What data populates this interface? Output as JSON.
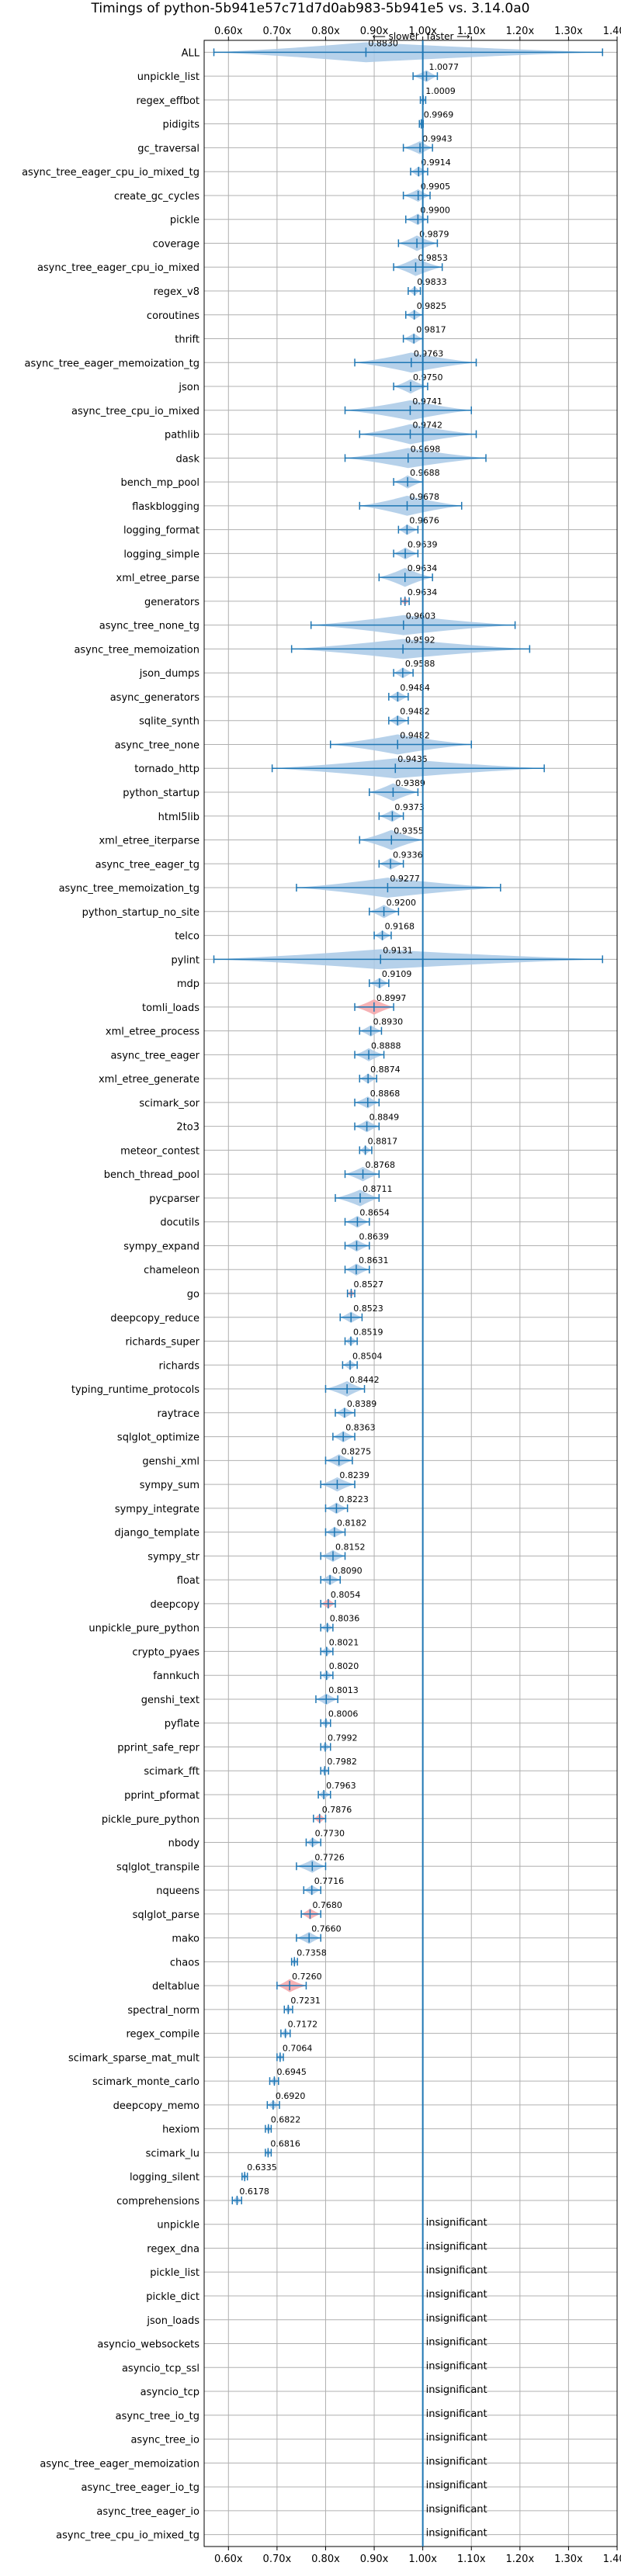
{
  "chart_data": {
    "type": "violin",
    "title": "Timings of python-5b941e57c71d7d0ab983-5b941e5 vs. 3.14.0a0",
    "annotation_left": "⟵ slower",
    "annotation_right": "faster ⟶",
    "xlim": [
      0.55,
      1.4
    ],
    "x_ticks": [
      0.6,
      0.7,
      0.8,
      0.9,
      1.0,
      1.1,
      1.2,
      1.3,
      1.4
    ],
    "x_tick_labels": [
      "0.60x",
      "0.70x",
      "0.80x",
      "0.90x",
      "1.00x",
      "1.10x",
      "1.20x",
      "1.30x",
      "1.40x"
    ],
    "reference_line": 1.0,
    "grid": true,
    "insignificant_label": "insignificant",
    "benchmarks": [
      {
        "name": "ALL",
        "value": 0.883,
        "label": "0.8830",
        "spread": [
          0.57,
          1.37
        ]
      },
      {
        "name": "unpickle_list",
        "value": 1.0077,
        "label": "1.0077",
        "spread": [
          0.98,
          1.03
        ]
      },
      {
        "name": "regex_effbot",
        "value": 1.0009,
        "label": "1.0009",
        "spread": [
          0.995,
          1.006
        ]
      },
      {
        "name": "pidigits",
        "value": 0.9969,
        "label": "0.9969",
        "spread": [
          0.993,
          1.001
        ]
      },
      {
        "name": "gc_traversal",
        "value": 0.9943,
        "label": "0.9943",
        "spread": [
          0.96,
          1.02
        ]
      },
      {
        "name": "async_tree_eager_cpu_io_mixed_tg",
        "value": 0.9914,
        "label": "0.9914",
        "spread": [
          0.975,
          1.01
        ]
      },
      {
        "name": "create_gc_cycles",
        "value": 0.9905,
        "label": "0.9905",
        "spread": [
          0.96,
          1.015
        ]
      },
      {
        "name": "pickle",
        "value": 0.99,
        "label": "0.9900",
        "spread": [
          0.965,
          1.01
        ]
      },
      {
        "name": "coverage",
        "value": 0.9879,
        "label": "0.9879",
        "spread": [
          0.95,
          1.03
        ]
      },
      {
        "name": "async_tree_eager_cpu_io_mixed",
        "value": 0.9853,
        "label": "0.9853",
        "spread": [
          0.94,
          1.04
        ]
      },
      {
        "name": "regex_v8",
        "value": 0.9833,
        "label": "0.9833",
        "spread": [
          0.97,
          0.995
        ]
      },
      {
        "name": "coroutines",
        "value": 0.9825,
        "label": "0.9825",
        "spread": [
          0.965,
          1.0
        ]
      },
      {
        "name": "thrift",
        "value": 0.9817,
        "label": "0.9817",
        "spread": [
          0.96,
          1.0
        ]
      },
      {
        "name": "async_tree_eager_memoization_tg",
        "value": 0.9763,
        "label": "0.9763",
        "spread": [
          0.86,
          1.11
        ]
      },
      {
        "name": "json",
        "value": 0.975,
        "label": "0.9750",
        "spread": [
          0.94,
          1.01
        ]
      },
      {
        "name": "async_tree_cpu_io_mixed",
        "value": 0.9741,
        "label": "0.9741",
        "spread": [
          0.84,
          1.1
        ]
      },
      {
        "name": "pathlib",
        "value": 0.9742,
        "label": "0.9742",
        "spread": [
          0.87,
          1.11
        ]
      },
      {
        "name": "dask",
        "value": 0.9698,
        "label": "0.9698",
        "spread": [
          0.84,
          1.13
        ]
      },
      {
        "name": "bench_mp_pool",
        "value": 0.9688,
        "label": "0.9688",
        "spread": [
          0.94,
          1.0
        ]
      },
      {
        "name": "flaskblogging",
        "value": 0.9678,
        "label": "0.9678",
        "spread": [
          0.87,
          1.08
        ]
      },
      {
        "name": "logging_format",
        "value": 0.9676,
        "label": "0.9676",
        "spread": [
          0.95,
          0.99
        ]
      },
      {
        "name": "logging_simple",
        "value": 0.9639,
        "label": "0.9639",
        "spread": [
          0.94,
          0.99
        ]
      },
      {
        "name": "xml_etree_parse",
        "value": 0.9634,
        "label": "0.9634",
        "spread": [
          0.91,
          1.02
        ]
      },
      {
        "name": "generators",
        "value": 0.9634,
        "label": "0.9634",
        "spread": [
          0.955,
          0.972
        ],
        "highlight": true
      },
      {
        "name": "async_tree_none_tg",
        "value": 0.9603,
        "label": "0.9603",
        "spread": [
          0.77,
          1.19
        ]
      },
      {
        "name": "async_tree_memoization",
        "value": 0.9592,
        "label": "0.9592",
        "spread": [
          0.73,
          1.22
        ]
      },
      {
        "name": "json_dumps",
        "value": 0.9588,
        "label": "0.9588",
        "spread": [
          0.94,
          0.98
        ]
      },
      {
        "name": "async_generators",
        "value": 0.9484,
        "label": "0.9484",
        "spread": [
          0.93,
          0.97
        ]
      },
      {
        "name": "sqlite_synth",
        "value": 0.9482,
        "label": "0.9482",
        "spread": [
          0.93,
          0.97
        ]
      },
      {
        "name": "async_tree_none",
        "value": 0.9482,
        "label": "0.9482",
        "spread": [
          0.81,
          1.1
        ]
      },
      {
        "name": "tornado_http",
        "value": 0.9435,
        "label": "0.9435",
        "spread": [
          0.69,
          1.25
        ]
      },
      {
        "name": "python_startup",
        "value": 0.9389,
        "label": "0.9389",
        "spread": [
          0.89,
          0.99
        ]
      },
      {
        "name": "html5lib",
        "value": 0.9373,
        "label": "0.9373",
        "spread": [
          0.91,
          0.96
        ]
      },
      {
        "name": "xml_etree_iterparse",
        "value": 0.9355,
        "label": "0.9355",
        "spread": [
          0.87,
          1.0
        ]
      },
      {
        "name": "async_tree_eager_tg",
        "value": 0.9336,
        "label": "0.9336",
        "spread": [
          0.91,
          0.96
        ]
      },
      {
        "name": "async_tree_memoization_tg",
        "value": 0.9277,
        "label": "0.9277",
        "spread": [
          0.74,
          1.16
        ]
      },
      {
        "name": "python_startup_no_site",
        "value": 0.92,
        "label": "0.9200",
        "spread": [
          0.89,
          0.95
        ]
      },
      {
        "name": "telco",
        "value": 0.9168,
        "label": "0.9168",
        "spread": [
          0.9,
          0.935
        ]
      },
      {
        "name": "pylint",
        "value": 0.9131,
        "label": "0.9131",
        "spread": [
          0.57,
          1.37
        ]
      },
      {
        "name": "mdp",
        "value": 0.9109,
        "label": "0.9109",
        "spread": [
          0.89,
          0.93
        ]
      },
      {
        "name": "tomli_loads",
        "value": 0.8997,
        "label": "0.8997",
        "spread": [
          0.86,
          0.94
        ],
        "highlight": true
      },
      {
        "name": "xml_etree_process",
        "value": 0.893,
        "label": "0.8930",
        "spread": [
          0.87,
          0.915
        ]
      },
      {
        "name": "async_tree_eager",
        "value": 0.8888,
        "label": "0.8888",
        "spread": [
          0.86,
          0.92
        ]
      },
      {
        "name": "xml_etree_generate",
        "value": 0.8874,
        "label": "0.8874",
        "spread": [
          0.87,
          0.905
        ]
      },
      {
        "name": "scimark_sor",
        "value": 0.8868,
        "label": "0.8868",
        "spread": [
          0.86,
          0.91
        ]
      },
      {
        "name": "2to3",
        "value": 0.8849,
        "label": "0.8849",
        "spread": [
          0.86,
          0.91
        ]
      },
      {
        "name": "meteor_contest",
        "value": 0.8817,
        "label": "0.8817",
        "spread": [
          0.87,
          0.895
        ]
      },
      {
        "name": "bench_thread_pool",
        "value": 0.8768,
        "label": "0.8768",
        "spread": [
          0.84,
          0.91
        ]
      },
      {
        "name": "pycparser",
        "value": 0.8711,
        "label": "0.8711",
        "spread": [
          0.82,
          0.91
        ]
      },
      {
        "name": "docutils",
        "value": 0.8654,
        "label": "0.8654",
        "spread": [
          0.84,
          0.89
        ]
      },
      {
        "name": "sympy_expand",
        "value": 0.8639,
        "label": "0.8639",
        "spread": [
          0.84,
          0.89
        ]
      },
      {
        "name": "chameleon",
        "value": 0.8631,
        "label": "0.8631",
        "spread": [
          0.84,
          0.89
        ]
      },
      {
        "name": "go",
        "value": 0.8527,
        "label": "0.8527",
        "spread": [
          0.845,
          0.86
        ],
        "highlight": true
      },
      {
        "name": "deepcopy_reduce",
        "value": 0.8523,
        "label": "0.8523",
        "spread": [
          0.83,
          0.875
        ]
      },
      {
        "name": "richards_super",
        "value": 0.8519,
        "label": "0.8519",
        "spread": [
          0.84,
          0.865
        ]
      },
      {
        "name": "richards",
        "value": 0.8504,
        "label": "0.8504",
        "spread": [
          0.835,
          0.865
        ]
      },
      {
        "name": "typing_runtime_protocols",
        "value": 0.8442,
        "label": "0.8442",
        "spread": [
          0.8,
          0.88
        ]
      },
      {
        "name": "raytrace",
        "value": 0.8389,
        "label": "0.8389",
        "spread": [
          0.82,
          0.86
        ]
      },
      {
        "name": "sqlglot_optimize",
        "value": 0.8363,
        "label": "0.8363",
        "spread": [
          0.815,
          0.86
        ]
      },
      {
        "name": "genshi_xml",
        "value": 0.8275,
        "label": "0.8275",
        "spread": [
          0.8,
          0.855
        ]
      },
      {
        "name": "sympy_sum",
        "value": 0.8239,
        "label": "0.8239",
        "spread": [
          0.79,
          0.86
        ]
      },
      {
        "name": "sympy_integrate",
        "value": 0.8223,
        "label": "0.8223",
        "spread": [
          0.8,
          0.845
        ]
      },
      {
        "name": "django_template",
        "value": 0.8182,
        "label": "0.8182",
        "spread": [
          0.8,
          0.84
        ]
      },
      {
        "name": "sympy_str",
        "value": 0.8152,
        "label": "0.8152",
        "spread": [
          0.79,
          0.84
        ]
      },
      {
        "name": "float",
        "value": 0.809,
        "label": "0.8090",
        "spread": [
          0.79,
          0.83
        ]
      },
      {
        "name": "deepcopy",
        "value": 0.8054,
        "label": "0.8054",
        "spread": [
          0.79,
          0.82
        ],
        "highlight": true
      },
      {
        "name": "unpickle_pure_python",
        "value": 0.8036,
        "label": "0.8036",
        "spread": [
          0.79,
          0.815
        ]
      },
      {
        "name": "crypto_pyaes",
        "value": 0.8021,
        "label": "0.8021",
        "spread": [
          0.79,
          0.815
        ]
      },
      {
        "name": "fannkuch",
        "value": 0.802,
        "label": "0.8020",
        "spread": [
          0.79,
          0.815
        ]
      },
      {
        "name": "genshi_text",
        "value": 0.8013,
        "label": "0.8013",
        "spread": [
          0.78,
          0.825
        ]
      },
      {
        "name": "pyflate",
        "value": 0.8006,
        "label": "0.8006",
        "spread": [
          0.79,
          0.81
        ]
      },
      {
        "name": "pprint_safe_repr",
        "value": 0.7992,
        "label": "0.7992",
        "spread": [
          0.79,
          0.81
        ]
      },
      {
        "name": "scimark_fft",
        "value": 0.7982,
        "label": "0.7982",
        "spread": [
          0.79,
          0.806
        ]
      },
      {
        "name": "pprint_pformat",
        "value": 0.7963,
        "label": "0.7963",
        "spread": [
          0.785,
          0.81
        ]
      },
      {
        "name": "pickle_pure_python",
        "value": 0.7876,
        "label": "0.7876",
        "spread": [
          0.775,
          0.8
        ],
        "highlight": true
      },
      {
        "name": "nbody",
        "value": 0.773,
        "label": "0.7730",
        "spread": [
          0.76,
          0.79
        ]
      },
      {
        "name": "sqlglot_transpile",
        "value": 0.7726,
        "label": "0.7726",
        "spread": [
          0.74,
          0.8
        ]
      },
      {
        "name": "nqueens",
        "value": 0.7716,
        "label": "0.7716",
        "spread": [
          0.755,
          0.79
        ]
      },
      {
        "name": "sqlglot_parse",
        "value": 0.768,
        "label": "0.7680",
        "spread": [
          0.75,
          0.79
        ],
        "highlight": true
      },
      {
        "name": "mako",
        "value": 0.766,
        "label": "0.7660",
        "spread": [
          0.74,
          0.79
        ]
      },
      {
        "name": "chaos",
        "value": 0.7358,
        "label": "0.7358",
        "spread": [
          0.73,
          0.742
        ]
      },
      {
        "name": "deltablue",
        "value": 0.726,
        "label": "0.7260",
        "spread": [
          0.7,
          0.76
        ],
        "highlight": true
      },
      {
        "name": "spectral_norm",
        "value": 0.7231,
        "label": "0.7231",
        "spread": [
          0.715,
          0.732
        ]
      },
      {
        "name": "regex_compile",
        "value": 0.7172,
        "label": "0.7172",
        "spread": [
          0.708,
          0.727
        ]
      },
      {
        "name": "scimark_sparse_mat_mult",
        "value": 0.7064,
        "label": "0.7064",
        "spread": [
          0.7,
          0.713
        ]
      },
      {
        "name": "scimark_monte_carlo",
        "value": 0.6945,
        "label": "0.6945",
        "spread": [
          0.685,
          0.703
        ]
      },
      {
        "name": "deepcopy_memo",
        "value": 0.692,
        "label": "0.6920",
        "spread": [
          0.68,
          0.705
        ]
      },
      {
        "name": "hexiom",
        "value": 0.6822,
        "label": "0.6822",
        "spread": [
          0.676,
          0.688
        ]
      },
      {
        "name": "scimark_lu",
        "value": 0.6816,
        "label": "0.6816",
        "spread": [
          0.676,
          0.688
        ]
      },
      {
        "name": "logging_silent",
        "value": 0.6335,
        "label": "0.6335",
        "spread": [
          0.628,
          0.639
        ]
      },
      {
        "name": "comprehensions",
        "value": 0.6178,
        "label": "0.6178",
        "spread": [
          0.608,
          0.627
        ]
      },
      {
        "name": "unpickle",
        "insignificant": true
      },
      {
        "name": "regex_dna",
        "insignificant": true
      },
      {
        "name": "pickle_list",
        "insignificant": true
      },
      {
        "name": "pickle_dict",
        "insignificant": true
      },
      {
        "name": "json_loads",
        "insignificant": true
      },
      {
        "name": "asyncio_websockets",
        "insignificant": true
      },
      {
        "name": "asyncio_tcp_ssl",
        "insignificant": true
      },
      {
        "name": "asyncio_tcp",
        "insignificant": true
      },
      {
        "name": "async_tree_io_tg",
        "insignificant": true
      },
      {
        "name": "async_tree_io",
        "insignificant": true
      },
      {
        "name": "async_tree_eager_memoization",
        "insignificant": true
      },
      {
        "name": "async_tree_eager_io_tg",
        "insignificant": true
      },
      {
        "name": "async_tree_eager_io",
        "insignificant": true
      },
      {
        "name": "async_tree_cpu_io_mixed_tg",
        "insignificant": true
      }
    ],
    "colors": {
      "violin_fill": "#a9c9e6",
      "line": "#1f77b4",
      "highlight_fill": "#f4a4a8",
      "grid": "#b0b0b0",
      "text": "#000000"
    }
  }
}
